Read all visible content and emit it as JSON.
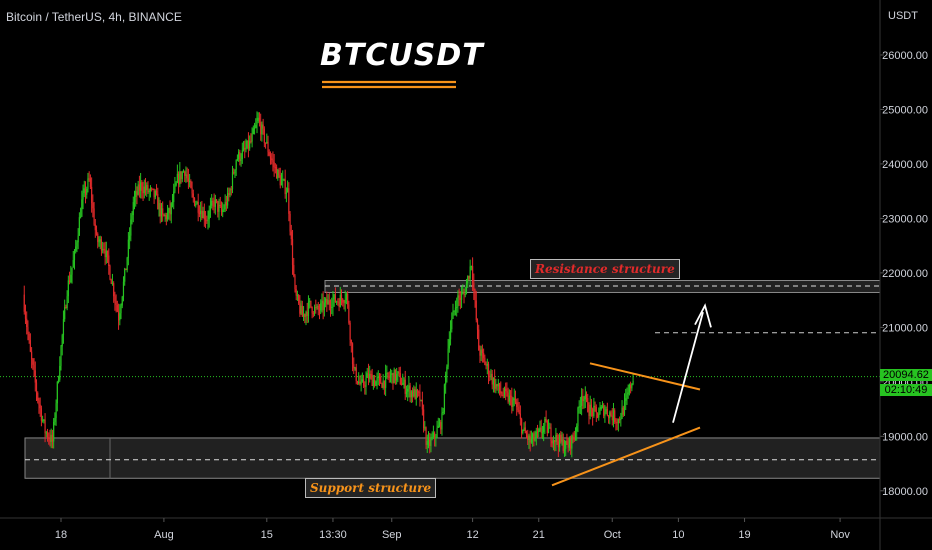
{
  "header": {
    "symbol": "Bitcoin / TetherUS, 4h, BINANCE"
  },
  "title": "BTCUSDT",
  "axis": {
    "unit": "USDT"
  },
  "price": {
    "last": "20094.62",
    "countdown": "02:10:49"
  },
  "zones": {
    "resistance": {
      "label": "Resistance structure",
      "low": 21640,
      "high": 21860,
      "mid": 21760
    },
    "support": {
      "label": "Support structure",
      "low": 18230,
      "high": 18970,
      "mid": 18570
    }
  },
  "colors": {
    "up": "#27c321",
    "down": "#e02a2a",
    "accent": "#f7931a",
    "resistance_text": "#e02a2a",
    "support_text": "#f7931a",
    "bg": "#000000"
  },
  "chart_data": {
    "type": "candlestick",
    "title": "BTCUSDT",
    "ylabel": "USDT",
    "ylim": [
      17800,
      26500
    ],
    "y_ticks": [
      18000,
      19000,
      20000,
      21000,
      22000,
      23000,
      24000,
      25000,
      26000
    ],
    "x_ticks": [
      "18",
      "Aug",
      "15",
      "13:30",
      "Sep",
      "12",
      "21",
      "Oct",
      "10",
      "19",
      "Nov"
    ],
    "x_tick_dates": [
      "2022-07-18",
      "2022-08-01",
      "2022-08-15",
      "2022-08-24",
      "2022-09-01",
      "2022-09-12",
      "2022-09-21",
      "2022-10-01",
      "2022-10-10",
      "2022-10-19",
      "2022-11-01"
    ],
    "close_path": [
      [
        "2022-07-13",
        21600
      ],
      [
        "2022-07-14",
        20500
      ],
      [
        "2022-07-15",
        19700
      ],
      [
        "2022-07-16",
        19100
      ],
      [
        "2022-07-17",
        18900
      ],
      [
        "2022-07-18",
        20400
      ],
      [
        "2022-07-19",
        21700
      ],
      [
        "2022-07-20",
        22300
      ],
      [
        "2022-07-21",
        23300
      ],
      [
        "2022-07-22",
        23700
      ],
      [
        "2022-07-23",
        22600
      ],
      [
        "2022-07-24",
        22500
      ],
      [
        "2022-07-25",
        21900
      ],
      [
        "2022-07-26",
        21200
      ],
      [
        "2022-07-27",
        22100
      ],
      [
        "2022-07-28",
        23300
      ],
      [
        "2022-07-29",
        23600
      ],
      [
        "2022-07-30",
        23500
      ],
      [
        "2022-07-31",
        23400
      ],
      [
        "2022-08-01",
        23000
      ],
      [
        "2022-08-02",
        23100
      ],
      [
        "2022-08-03",
        23700
      ],
      [
        "2022-08-04",
        23900
      ],
      [
        "2022-08-05",
        23400
      ],
      [
        "2022-08-06",
        23200
      ],
      [
        "2022-08-07",
        23000
      ],
      [
        "2022-08-08",
        23300
      ],
      [
        "2022-08-09",
        23100
      ],
      [
        "2022-08-10",
        23400
      ],
      [
        "2022-08-11",
        24100
      ],
      [
        "2022-08-12",
        24200
      ],
      [
        "2022-08-13",
        24400
      ],
      [
        "2022-08-14",
        24800
      ],
      [
        "2022-08-15",
        24400
      ],
      [
        "2022-08-16",
        24000
      ],
      [
        "2022-08-17",
        23700
      ],
      [
        "2022-08-18",
        23500
      ],
      [
        "2022-08-19",
        21600
      ],
      [
        "2022-08-20",
        21200
      ],
      [
        "2022-08-21",
        21400
      ],
      [
        "2022-08-22",
        21300
      ],
      [
        "2022-08-23",
        21400
      ],
      [
        "2022-08-24",
        21500
      ],
      [
        "2022-08-25",
        21500
      ],
      [
        "2022-08-26",
        21600
      ],
      [
        "2022-08-27",
        20200
      ],
      [
        "2022-08-28",
        19900
      ],
      [
        "2022-08-29",
        20100
      ],
      [
        "2022-08-30",
        20000
      ],
      [
        "2022-08-31",
        20000
      ],
      [
        "2022-09-01",
        20100
      ],
      [
        "2022-09-02",
        20100
      ],
      [
        "2022-09-03",
        19900
      ],
      [
        "2022-09-04",
        19800
      ],
      [
        "2022-09-05",
        19700
      ],
      [
        "2022-09-06",
        18800
      ],
      [
        "2022-09-07",
        19000
      ],
      [
        "2022-09-08",
        19300
      ],
      [
        "2022-09-09",
        20900
      ],
      [
        "2022-09-10",
        21500
      ],
      [
        "2022-09-11",
        21600
      ],
      [
        "2022-09-12",
        22200
      ],
      [
        "2022-09-13",
        20600
      ],
      [
        "2022-09-14",
        20300
      ],
      [
        "2022-09-15",
        20000
      ],
      [
        "2022-09-16",
        19800
      ],
      [
        "2022-09-17",
        19700
      ],
      [
        "2022-09-18",
        19600
      ],
      [
        "2022-09-19",
        19100
      ],
      [
        "2022-09-20",
        18900
      ],
      [
        "2022-09-21",
        19000
      ],
      [
        "2022-09-22",
        19200
      ],
      [
        "2022-09-23",
        19000
      ],
      [
        "2022-09-24",
        18900
      ],
      [
        "2022-09-25",
        18800
      ],
      [
        "2022-09-26",
        19000
      ],
      [
        "2022-09-27",
        19800
      ],
      [
        "2022-09-28",
        19500
      ],
      [
        "2022-09-29",
        19400
      ],
      [
        "2022-09-30",
        19500
      ],
      [
        "2022-10-01",
        19400
      ],
      [
        "2022-10-02",
        19300
      ],
      [
        "2022-10-03",
        19600
      ],
      [
        "2022-10-04",
        20100
      ]
    ],
    "annotations": [
      {
        "type": "arrow",
        "direction": "up"
      },
      {
        "type": "triangle",
        "color": "#f7931a"
      }
    ]
  }
}
